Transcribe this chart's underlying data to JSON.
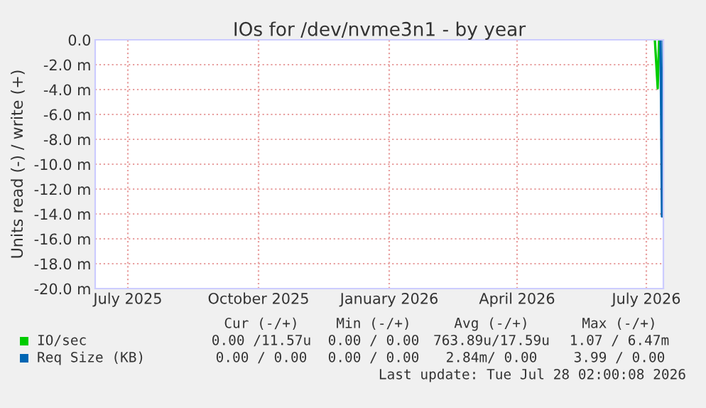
{
  "chart_data": {
    "type": "line",
    "title": "IOs for /dev/nvme3n1 - by year",
    "ylabel": "Units read (-) / write (+)",
    "xlim": [
      "2025-06-23",
      "2026-07-28"
    ],
    "ylim": [
      -20,
      0
    ],
    "xticks": [
      {
        "value": "2025-07-16",
        "label": "July 2025"
      },
      {
        "value": "2025-10-16",
        "label": "October 2025"
      },
      {
        "value": "2026-01-16",
        "label": "January 2026"
      },
      {
        "value": "2026-04-16",
        "label": "April 2026"
      },
      {
        "value": "2026-07-16",
        "label": "July 2026"
      }
    ],
    "yticks": [
      {
        "value": 0,
        "label": "0.0"
      },
      {
        "value": -2,
        "label": "-2.0 m"
      },
      {
        "value": -4,
        "label": "-4.0 m"
      },
      {
        "value": -6,
        "label": "-6.0 m"
      },
      {
        "value": -8,
        "label": "-8.0 m"
      },
      {
        "value": -10,
        "label": "-10.0 m"
      },
      {
        "value": -12,
        "label": "-12.0 m"
      },
      {
        "value": -14,
        "label": "-14.0 m"
      },
      {
        "value": -16,
        "label": "-16.0 m"
      },
      {
        "value": -18,
        "label": "-18.0 m"
      },
      {
        "value": -20,
        "label": "-20.0 m"
      }
    ],
    "grid": true,
    "legend": "bottom",
    "series": [
      {
        "name": "IO/sec",
        "color": "#00cc00",
        "x": [
          "2026-07-22",
          "2026-07-24",
          "2026-07-25"
        ],
        "values": [
          0,
          -3.9,
          0
        ]
      },
      {
        "name": "Req Size (KB)",
        "color": "#0066b3",
        "x": [
          "2026-07-26",
          "2026-07-27",
          "2026-07-28"
        ],
        "values": [
          0,
          -14.2,
          0
        ]
      }
    ],
    "annotations": [
      "Cur (-/+)",
      "Min (-/+)",
      "Avg (-/+)",
      "Max (-/+)",
      "0.00 /11.57u",
      "0.00 / 0.00",
      "763.89u/17.59u",
      "1.07 / 6.47m",
      "0.00 / 0.00",
      "0.00 / 0.00",
      "2.84m/ 0.00",
      "3.99 / 0.00",
      "Last update: Tue Jul 28 02:00:08 2026"
    ]
  }
}
